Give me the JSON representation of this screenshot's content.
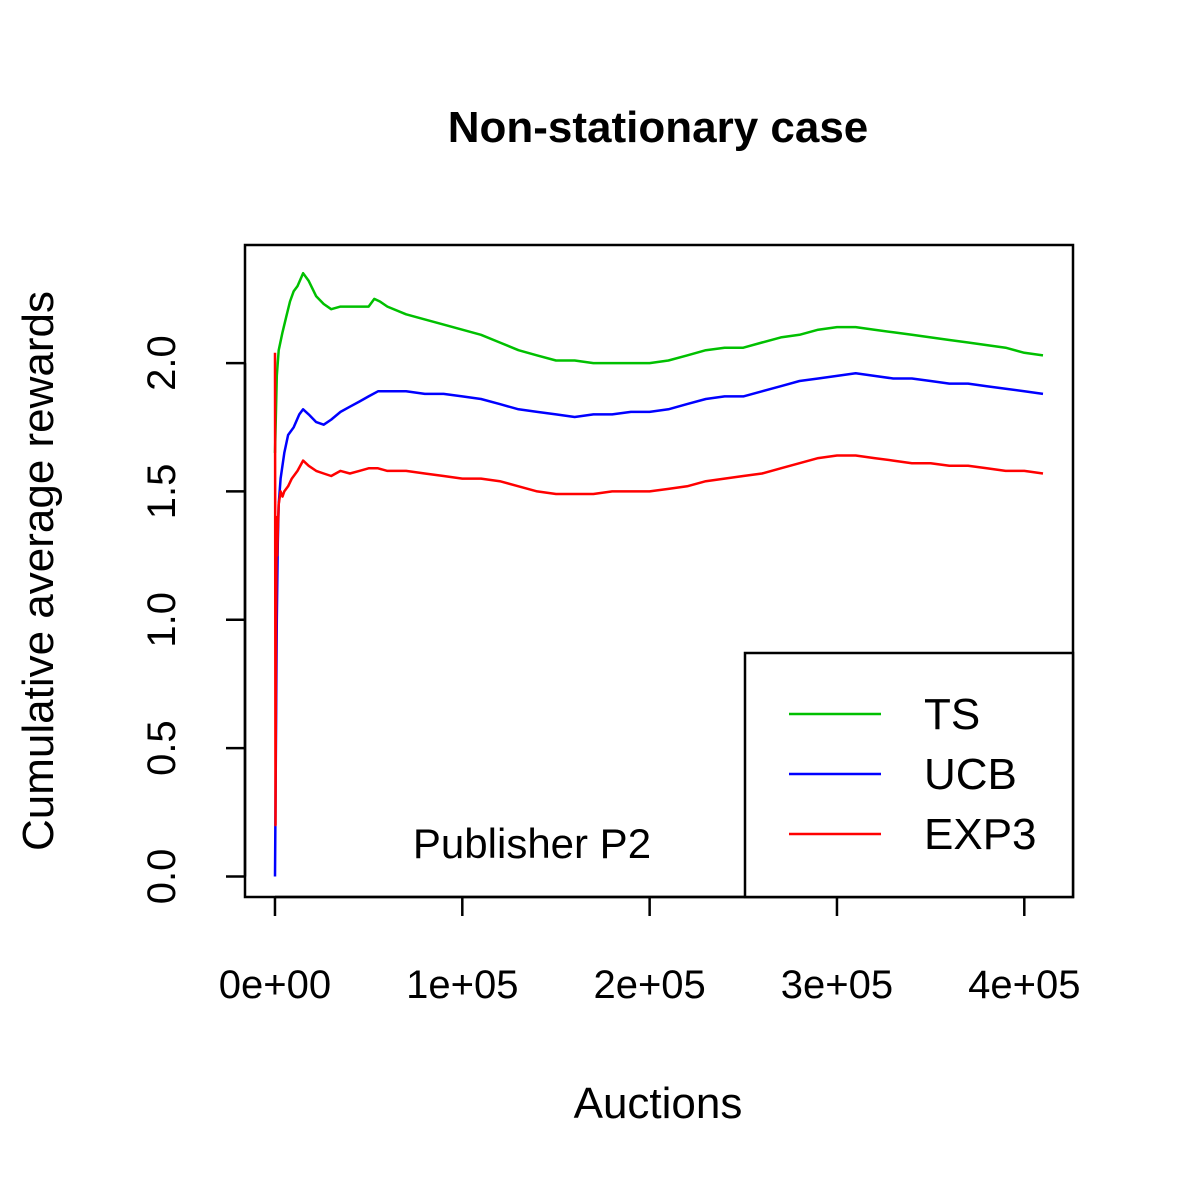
{
  "chart_data": {
    "type": "line",
    "title": "Non-stationary case",
    "xlabel": "Auctions",
    "ylabel": "Cumulative average rewards",
    "annotation": "Publisher P2",
    "xlim": [
      -16000,
      426000
    ],
    "ylim": [
      -0.08,
      2.46
    ],
    "x_ticks": [
      0,
      100000,
      200000,
      300000,
      400000
    ],
    "x_tick_labels": [
      "0e+00",
      "1e+05",
      "2e+05",
      "3e+05",
      "4e+05"
    ],
    "y_ticks": [
      0,
      0.5,
      1,
      1.5,
      2
    ],
    "y_tick_labels": [
      "0.0",
      "0.5",
      "1.0",
      "1.5",
      "2.0"
    ],
    "grid": false,
    "legend_position": "bottom-right",
    "series": [
      {
        "name": "TS",
        "color": "#00C000",
        "x": [
          0,
          1000,
          2000,
          4000,
          6000,
          8000,
          10000,
          12000,
          15000,
          18000,
          22000,
          26000,
          30000,
          35000,
          40000,
          45000,
          50000,
          53000,
          56000,
          60000,
          70000,
          80000,
          90000,
          100000,
          110000,
          120000,
          130000,
          140000,
          150000,
          160000,
          170000,
          180000,
          190000,
          200000,
          210000,
          220000,
          230000,
          240000,
          250000,
          260000,
          270000,
          280000,
          290000,
          300000,
          310000,
          320000,
          330000,
          340000,
          350000,
          360000,
          370000,
          380000,
          390000,
          400000,
          410000
        ],
        "y": [
          1.65,
          1.95,
          2.05,
          2.12,
          2.18,
          2.24,
          2.28,
          2.3,
          2.35,
          2.32,
          2.26,
          2.23,
          2.21,
          2.22,
          2.22,
          2.22,
          2.22,
          2.25,
          2.24,
          2.22,
          2.19,
          2.17,
          2.15,
          2.13,
          2.11,
          2.08,
          2.05,
          2.03,
          2.01,
          2.01,
          2.0,
          2.0,
          2.0,
          2.0,
          2.01,
          2.03,
          2.05,
          2.06,
          2.06,
          2.08,
          2.1,
          2.11,
          2.13,
          2.14,
          2.14,
          2.13,
          2.12,
          2.11,
          2.1,
          2.09,
          2.08,
          2.07,
          2.06,
          2.04,
          2.03
        ]
      },
      {
        "name": "UCB",
        "color": "#0000FF",
        "x": [
          0,
          500,
          1000,
          1500,
          2000,
          3000,
          5000,
          7000,
          10000,
          13000,
          15000,
          18000,
          22000,
          26000,
          30000,
          35000,
          40000,
          45000,
          50000,
          55000,
          60000,
          70000,
          80000,
          90000,
          100000,
          110000,
          120000,
          130000,
          140000,
          150000,
          160000,
          170000,
          180000,
          190000,
          200000,
          210000,
          220000,
          230000,
          240000,
          250000,
          260000,
          270000,
          280000,
          290000,
          300000,
          310000,
          320000,
          330000,
          340000,
          350000,
          360000,
          370000,
          380000,
          390000,
          400000,
          410000
        ],
        "y": [
          0.0,
          0.5,
          1.0,
          1.3,
          1.45,
          1.55,
          1.65,
          1.72,
          1.75,
          1.8,
          1.82,
          1.8,
          1.77,
          1.76,
          1.78,
          1.81,
          1.83,
          1.85,
          1.87,
          1.89,
          1.89,
          1.89,
          1.88,
          1.88,
          1.87,
          1.86,
          1.84,
          1.82,
          1.81,
          1.8,
          1.79,
          1.8,
          1.8,
          1.81,
          1.81,
          1.82,
          1.84,
          1.86,
          1.87,
          1.87,
          1.89,
          1.91,
          1.93,
          1.94,
          1.95,
          1.96,
          1.95,
          1.94,
          1.94,
          1.93,
          1.92,
          1.92,
          1.91,
          1.9,
          1.89,
          1.88
        ]
      },
      {
        "name": "EXP3",
        "color": "#FF0000",
        "x": [
          0,
          300,
          600,
          900,
          1200,
          1500,
          2000,
          3000,
          4000,
          5000,
          7000,
          9000,
          12000,
          15000,
          18000,
          22000,
          26000,
          30000,
          35000,
          40000,
          45000,
          50000,
          55000,
          60000,
          70000,
          80000,
          90000,
          100000,
          110000,
          120000,
          130000,
          140000,
          150000,
          160000,
          170000,
          180000,
          190000,
          200000,
          210000,
          220000,
          230000,
          240000,
          250000,
          260000,
          270000,
          280000,
          290000,
          300000,
          310000,
          320000,
          330000,
          340000,
          350000,
          360000,
          370000,
          380000,
          390000,
          400000,
          410000
        ],
        "y": [
          2.04,
          0.2,
          1.0,
          1.4,
          1.25,
          1.35,
          1.45,
          1.5,
          1.48,
          1.5,
          1.52,
          1.55,
          1.58,
          1.62,
          1.6,
          1.58,
          1.57,
          1.56,
          1.58,
          1.57,
          1.58,
          1.59,
          1.59,
          1.58,
          1.58,
          1.57,
          1.56,
          1.55,
          1.55,
          1.54,
          1.52,
          1.5,
          1.49,
          1.49,
          1.49,
          1.5,
          1.5,
          1.5,
          1.51,
          1.52,
          1.54,
          1.55,
          1.56,
          1.57,
          1.59,
          1.61,
          1.63,
          1.64,
          1.64,
          1.63,
          1.62,
          1.61,
          1.61,
          1.6,
          1.6,
          1.59,
          1.58,
          1.58,
          1.57
        ]
      }
    ]
  }
}
